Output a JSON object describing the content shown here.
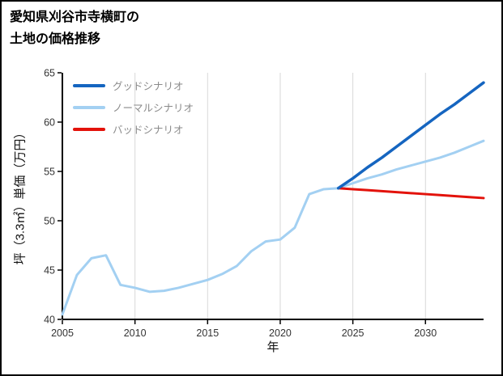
{
  "page": {
    "background": "#ffffff",
    "border_color": "#000000"
  },
  "title": {
    "line1": "愛知県刈谷市寺横町の",
    "line2": "土地の価格推移"
  },
  "legend": {
    "items": [
      {
        "label": "グッドシナリオ",
        "color": "#1565c0"
      },
      {
        "label": "ノーマルシナリオ",
        "color": "#a3d0f2"
      },
      {
        "label": "バッドシナリオ",
        "color": "#e3120b"
      }
    ]
  },
  "chart_data": {
    "type": "line",
    "title": "愛知県刈谷市寺横町の土地の価格推移",
    "xlabel": "年",
    "ylabel": "坪（3.3㎡）単価（万円）",
    "xlim": [
      2005,
      2034
    ],
    "ylim": [
      40,
      65
    ],
    "xticks": [
      2005,
      2010,
      2015,
      2020,
      2025,
      2030
    ],
    "yticks": [
      40,
      45,
      50,
      55,
      60,
      65
    ],
    "grid": "vertical",
    "grid_color": "#d8d8d8",
    "legend_position": "upper-left",
    "series": [
      {
        "name": "ノーマルシナリオ",
        "color": "#a3d0f2",
        "width": 3,
        "x": [
          2005,
          2006,
          2007,
          2008,
          2009,
          2010,
          2011,
          2012,
          2013,
          2014,
          2015,
          2016,
          2017,
          2018,
          2019,
          2020,
          2021,
          2022,
          2023,
          2024,
          2025,
          2026,
          2027,
          2028,
          2029,
          2030,
          2031,
          2032,
          2033,
          2034
        ],
        "values": [
          40.5,
          44.5,
          46.2,
          46.5,
          43.5,
          43.2,
          42.8,
          42.9,
          43.2,
          43.6,
          44.0,
          44.6,
          45.4,
          46.9,
          47.9,
          48.1,
          49.3,
          52.7,
          53.2,
          53.3,
          53.8,
          54.3,
          54.7,
          55.2,
          55.6,
          56.0,
          56.4,
          56.9,
          57.5,
          58.1
        ]
      },
      {
        "name": "バッドシナリオ",
        "color": "#e3120b",
        "width": 3,
        "x": [
          2024,
          2025,
          2026,
          2027,
          2028,
          2029,
          2030,
          2031,
          2032,
          2033,
          2034
        ],
        "values": [
          53.3,
          53.2,
          53.1,
          53.0,
          52.9,
          52.8,
          52.7,
          52.6,
          52.5,
          52.4,
          52.3
        ]
      },
      {
        "name": "グッドシナリオ",
        "color": "#1565c0",
        "width": 3.5,
        "x": [
          2024,
          2025,
          2026,
          2027,
          2028,
          2029,
          2030,
          2031,
          2032,
          2033,
          2034
        ],
        "values": [
          53.3,
          54.3,
          55.4,
          56.4,
          57.5,
          58.6,
          59.7,
          60.8,
          61.8,
          62.9,
          64.0
        ]
      }
    ]
  }
}
